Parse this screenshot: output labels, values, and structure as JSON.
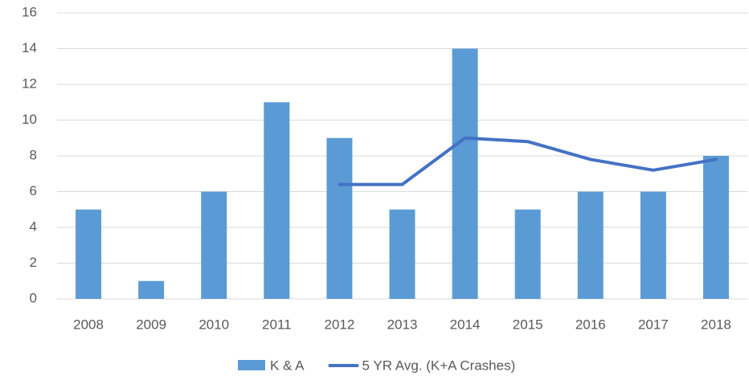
{
  "chart_data": {
    "type": "bar",
    "categories": [
      "2008",
      "2009",
      "2010",
      "2011",
      "2012",
      "2013",
      "2014",
      "2015",
      "2016",
      "2017",
      "2018"
    ],
    "series": [
      {
        "name": "K & A",
        "type": "bar",
        "color": "#5b9bd5",
        "values": [
          5,
          1,
          6,
          11,
          9,
          5,
          14,
          5,
          6,
          6,
          8
        ]
      },
      {
        "name": "5 YR Avg. (K+A Crashes)",
        "type": "line",
        "color": "#4472c4",
        "values": [
          null,
          null,
          null,
          null,
          6.4,
          6.4,
          9,
          8.8,
          7.8,
          7.2,
          7.8
        ]
      }
    ],
    "ylim": [
      0,
      16
    ],
    "yticks": [
      0,
      2,
      4,
      6,
      8,
      10,
      12,
      14,
      16
    ],
    "grid": true,
    "legend": "bottom"
  }
}
